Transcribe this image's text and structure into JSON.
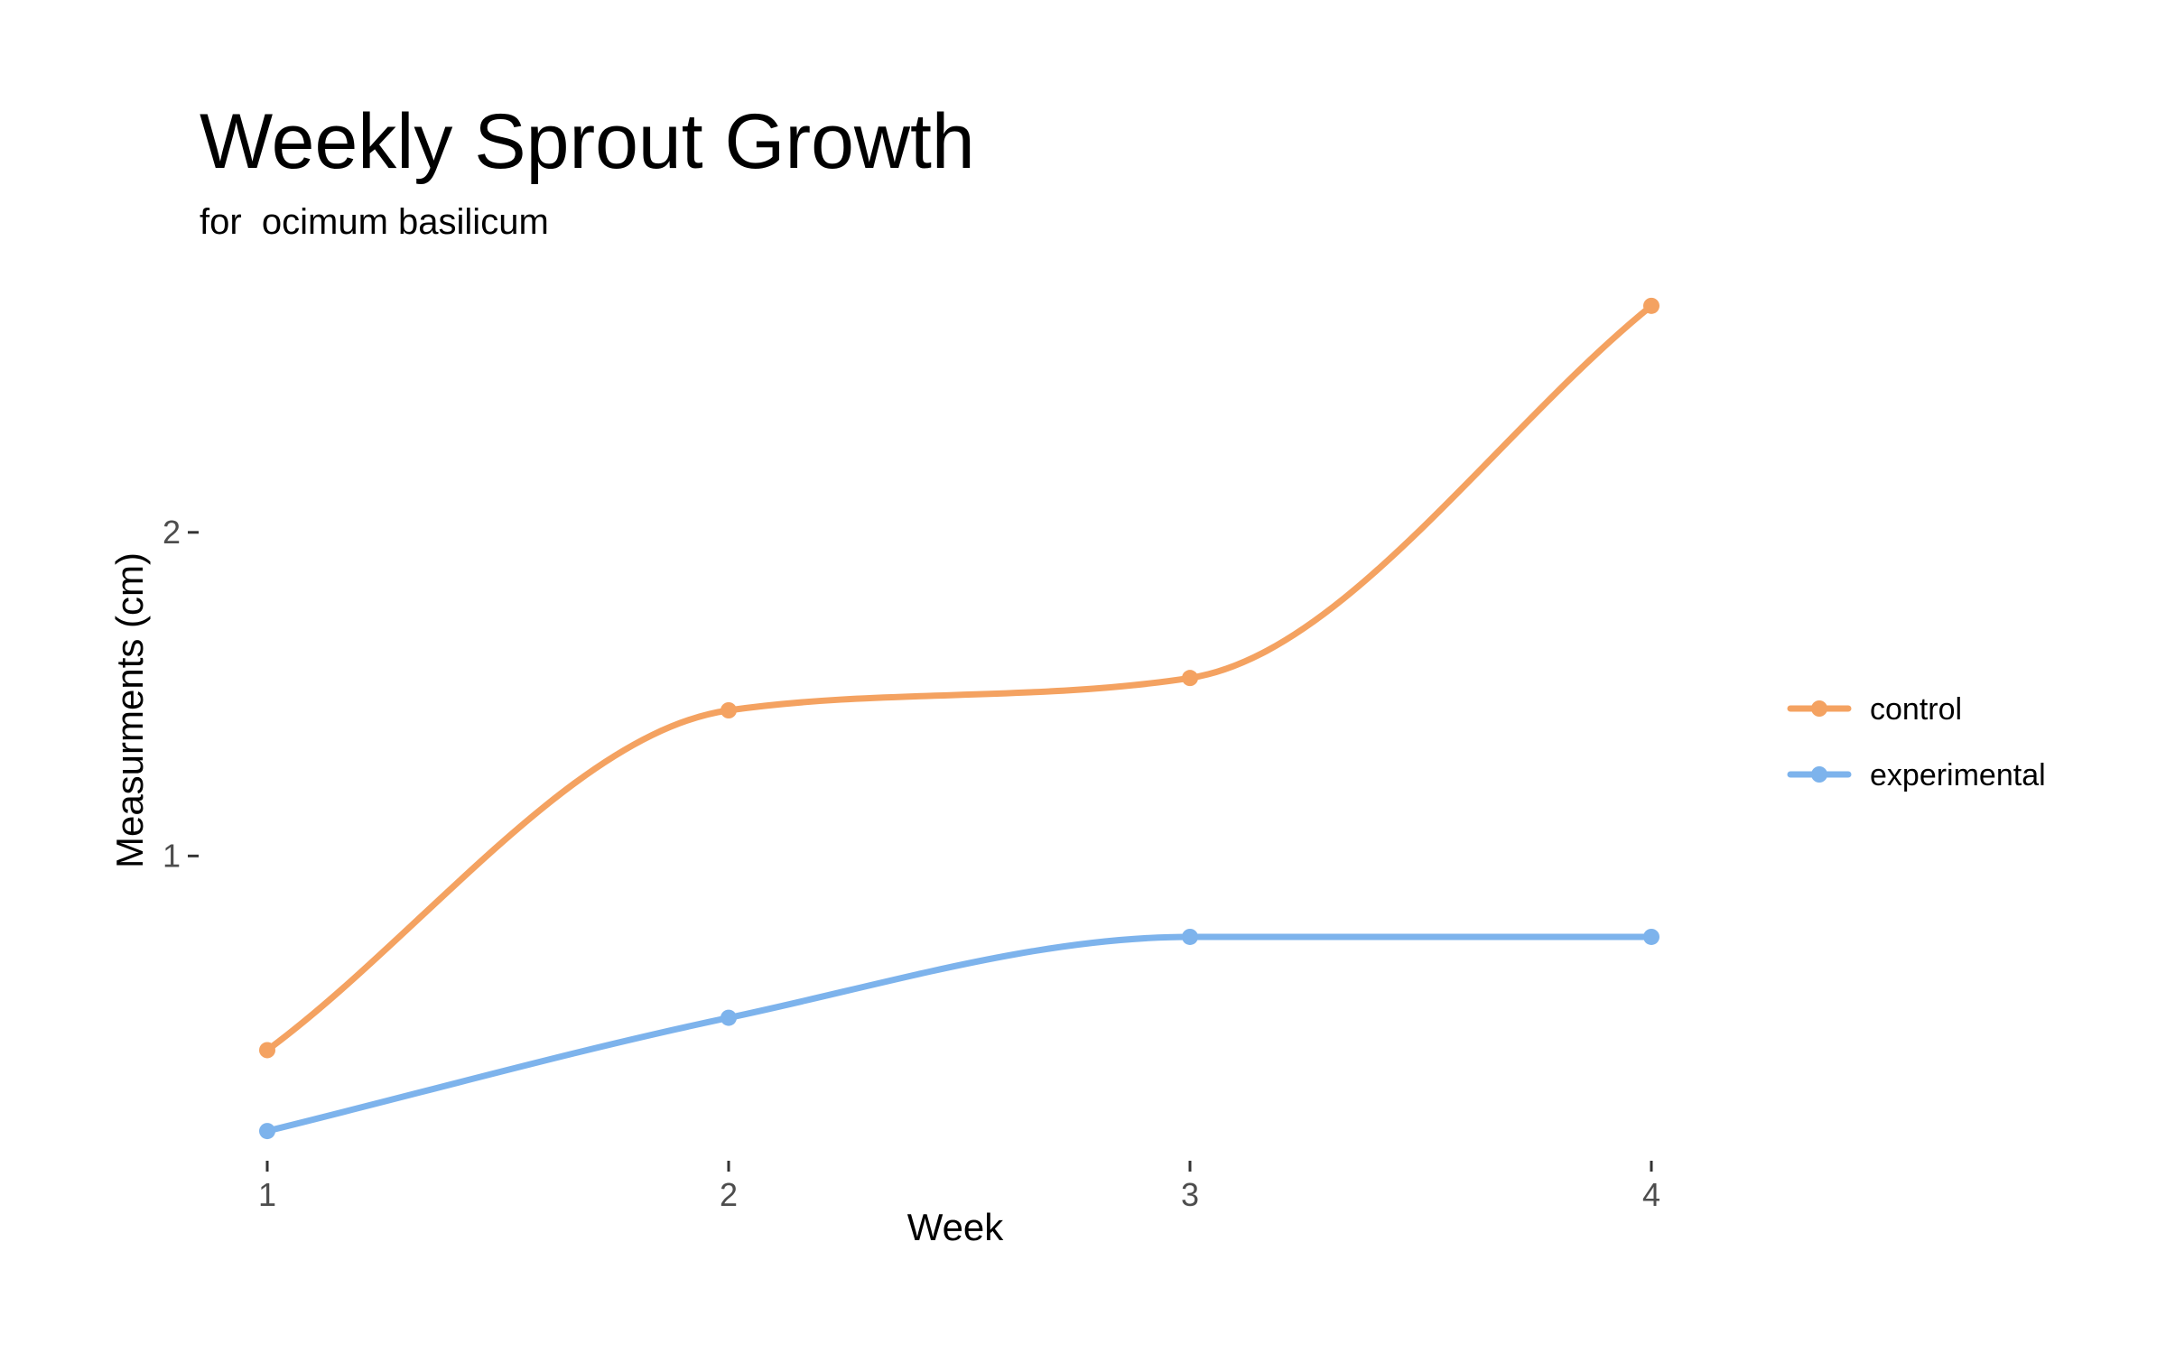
{
  "chart_data": {
    "type": "line",
    "title": "Weekly Sprout Growth",
    "subtitle": "for  ocimum basilicum",
    "xlabel": "Week",
    "ylabel": "Measurments (cm)",
    "x": [
      1,
      2,
      3,
      4
    ],
    "x_tick_labels": [
      "1",
      "2",
      "3",
      "4"
    ],
    "y_ticks": [
      1,
      2
    ],
    "y_tick_labels": [
      "1",
      "2"
    ],
    "xlim": [
      1,
      4
    ],
    "ylim": [
      0.1,
      2.8
    ],
    "grid": false,
    "legend_position": "right",
    "smoothed": true,
    "series": [
      {
        "name": "control",
        "values": [
          0.4,
          1.45,
          1.55,
          2.7
        ],
        "color": "#F4A261"
      },
      {
        "name": "experimental",
        "values": [
          0.15,
          0.5,
          0.75,
          0.75
        ],
        "color": "#7DB3EC"
      }
    ]
  }
}
